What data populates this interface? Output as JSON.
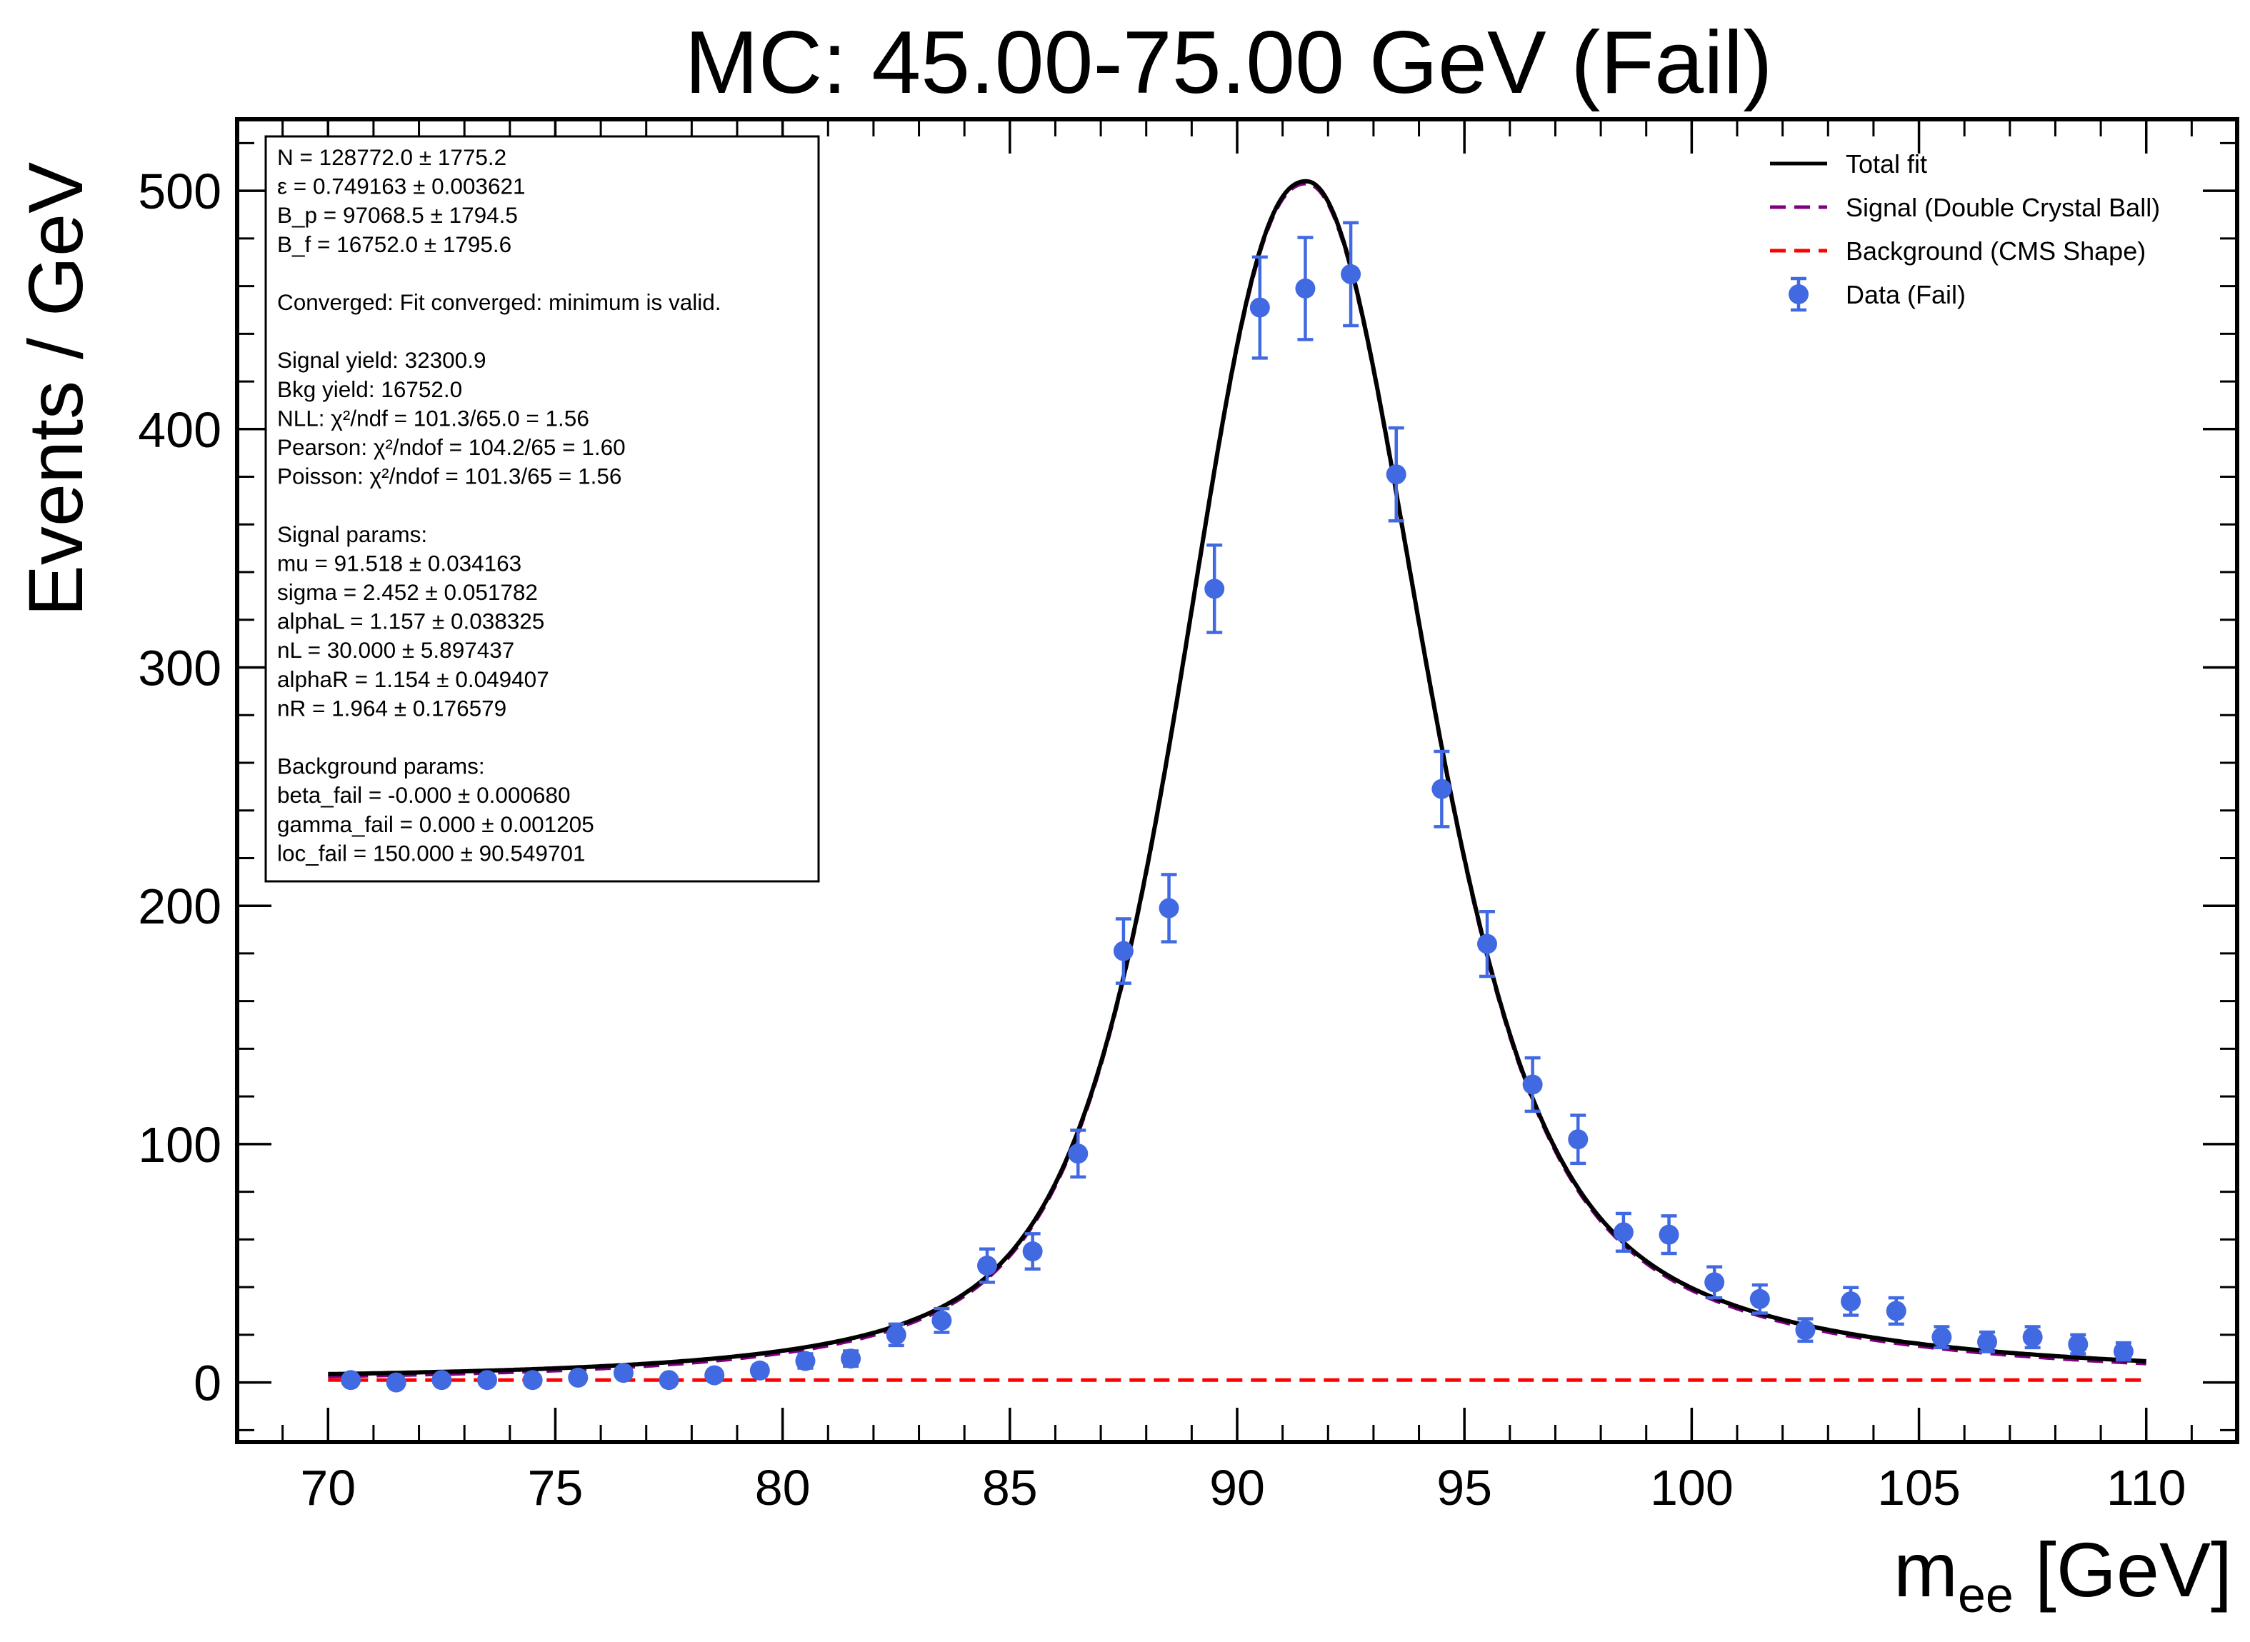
{
  "chart_data": {
    "type": "scatter",
    "title": "MC: 45.00-75.00 GeV (Fail)",
    "xlabel_main": "m",
    "xlabel_sub": "ee",
    "xlabel_unit": " [GeV]",
    "ylabel": "Events / GeV",
    "xlim": [
      68,
      112
    ],
    "ylim": [
      -25,
      530
    ],
    "x_ticks": [
      70,
      75,
      80,
      85,
      90,
      95,
      100,
      105,
      110
    ],
    "x_minor_step": 1,
    "y_ticks": [
      0,
      100,
      200,
      300,
      400,
      500
    ],
    "y_minor_step": 20,
    "grid": false,
    "legend_position": "top-right",
    "legend": [
      {
        "label": "Total fit",
        "style": "solid",
        "color": "#000000"
      },
      {
        "label": "Signal (Double Crystal Ball)",
        "style": "dashed",
        "color": "#800080"
      },
      {
        "label": "Background (CMS Shape)",
        "style": "dashed",
        "color": "#ff0000"
      },
      {
        "label": "Data (Fail)",
        "style": "errorbar-point",
        "color": "#4169e1"
      }
    ],
    "info_box": [
      "N = 128772.0 ± 1775.2",
      "ε = 0.749163 ± 0.003621",
      "B_p = 97068.5 ± 1794.5",
      "B_f = 16752.0 ± 1795.6",
      "",
      "Converged: Fit converged: minimum is valid.",
      "",
      "Signal yield: 32300.9",
      "Bkg yield: 16752.0",
      "NLL: χ²/ndf = 101.3/65.0 = 1.56",
      "Pearson: χ²/ndof = 104.2/65 = 1.60",
      "Poisson: χ²/ndof = 101.3/65 = 1.56",
      "",
      "Signal params:",
      "mu = 91.518 ± 0.034163",
      "sigma = 2.452 ± 0.051782",
      "alphaL = 1.157 ± 0.038325",
      "nL = 30.000 ± 5.897437",
      "alphaR = 1.154 ± 0.049407",
      "nR = 1.964 ± 0.176579",
      "",
      "Background params:",
      "beta_fail = -0.000 ± 0.000680",
      "gamma_fail = 0.000 ± 0.001205",
      "loc_fail = 150.000 ± 90.549701"
    ],
    "data_points": {
      "name": "Data (Fail)",
      "x": [
        70.5,
        71.5,
        72.5,
        73.5,
        74.5,
        75.5,
        76.5,
        77.5,
        78.5,
        79.5,
        80.5,
        81.5,
        82.5,
        83.5,
        84.5,
        85.5,
        86.5,
        87.5,
        88.5,
        89.5,
        90.5,
        91.5,
        92.5,
        93.5,
        94.5,
        95.5,
        96.5,
        97.5,
        98.5,
        99.5,
        100.5,
        101.5,
        102.5,
        103.5,
        104.5,
        105.5,
        106.5,
        107.5,
        108.5,
        109.5
      ],
      "y": [
        1,
        0,
        1,
        1,
        1,
        2,
        4,
        1,
        3,
        5,
        9,
        10,
        20,
        26,
        49,
        55,
        96,
        181,
        199,
        333,
        451,
        459,
        465,
        381,
        249,
        184,
        125,
        102,
        63,
        62,
        42,
        35,
        22,
        34,
        30,
        19,
        17,
        19,
        16,
        13
      ],
      "yerr": [
        1,
        1,
        1,
        1,
        1,
        1.4,
        2,
        1,
        1.7,
        2.2,
        3,
        3.2,
        4.5,
        5,
        7,
        7.4,
        9.8,
        13.5,
        14.1,
        18.3,
        21.2,
        21.4,
        21.6,
        19.5,
        15.8,
        13.6,
        11.2,
        10.1,
        7.9,
        7.9,
        6.5,
        5.9,
        4.7,
        5.8,
        5.5,
        4.4,
        4.1,
        4.4,
        4,
        3.6
      ]
    },
    "fit_model": {
      "mu": 91.518,
      "sigma": 2.452,
      "peak": 503,
      "tail_left": 3.1,
      "tail_right": 3.9,
      "background_level": 1,
      "x_range": [
        70,
        110
      ]
    }
  }
}
